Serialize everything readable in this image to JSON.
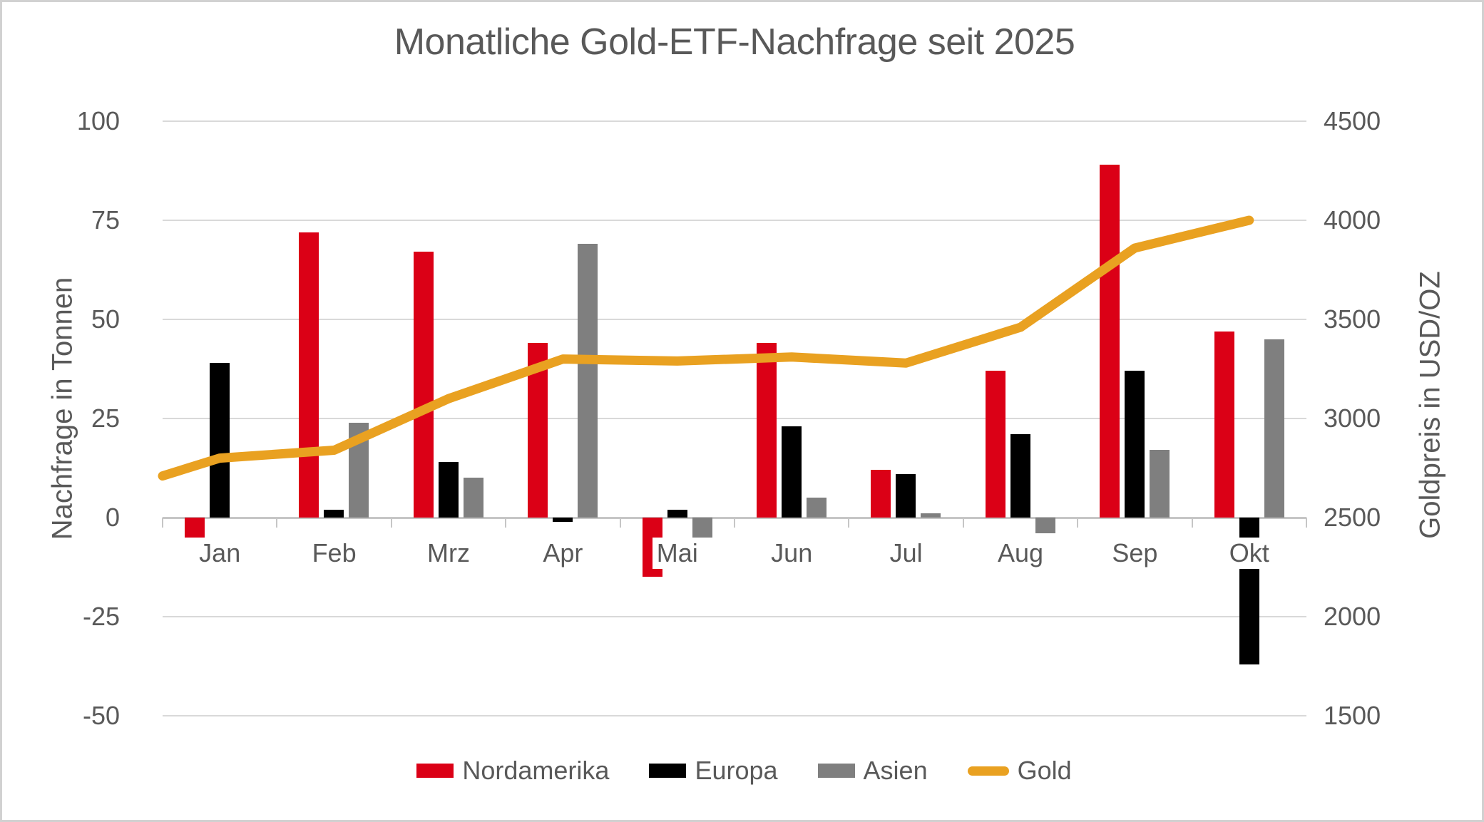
{
  "title": "Monatliche Gold-ETF-Nachfrage seit 2025",
  "chart_data": {
    "type": "combo-bar-line",
    "categories": [
      "Jan",
      "Feb",
      "Mrz",
      "Apr",
      "Mai",
      "Jun",
      "Jul",
      "Aug",
      "Sep",
      "Okt"
    ],
    "series": [
      {
        "name": "Nordamerika",
        "type": "bar",
        "axis": "left",
        "color": "#db0016",
        "values": [
          -5,
          72,
          67,
          44,
          -15,
          44,
          12,
          37,
          89,
          47
        ]
      },
      {
        "name": "Europa",
        "type": "bar",
        "axis": "left",
        "color": "#000000",
        "values": [
          39,
          2,
          14,
          -1,
          2,
          23,
          11,
          21,
          37,
          -37
        ]
      },
      {
        "name": "Asien",
        "type": "bar",
        "axis": "left",
        "color": "#7f7f7f",
        "values": [
          0,
          24,
          10,
          69,
          -5,
          5,
          1,
          -4,
          17,
          45
        ]
      },
      {
        "name": "Gold",
        "type": "line",
        "axis": "right",
        "color": "#e9a121",
        "values": [
          2800,
          2840,
          3100,
          3300,
          3290,
          3310,
          3280,
          3460,
          3860,
          4000
        ],
        "edge_lead_in_value": 2710
      }
    ],
    "left_axis": {
      "title": "Nachfrage in Tonnen",
      "min": -50,
      "max": 100,
      "step": 25,
      "tick_values": [
        100,
        75,
        50,
        25,
        0,
        -25,
        -50
      ]
    },
    "right_axis": {
      "title": "Goldpreis in USD/OZ",
      "min": 1500,
      "max": 4500,
      "step": 500,
      "tick_values": [
        4500,
        4000,
        3500,
        3000,
        2500,
        2000,
        1500
      ]
    },
    "legend": {
      "position": "bottom",
      "items": [
        "Nordamerika",
        "Europa",
        "Asien",
        "Gold"
      ]
    },
    "grid": "horizontal"
  },
  "colors": {
    "background": "#ffffff",
    "frame_border": "#d1d1d1",
    "text": "#595959",
    "gridline": "#d9d9d9",
    "axis_line": "#c6c6c6",
    "nordamerika": "#db0016",
    "europa": "#000000",
    "asien": "#7f7f7f",
    "gold": "#e9a121"
  }
}
